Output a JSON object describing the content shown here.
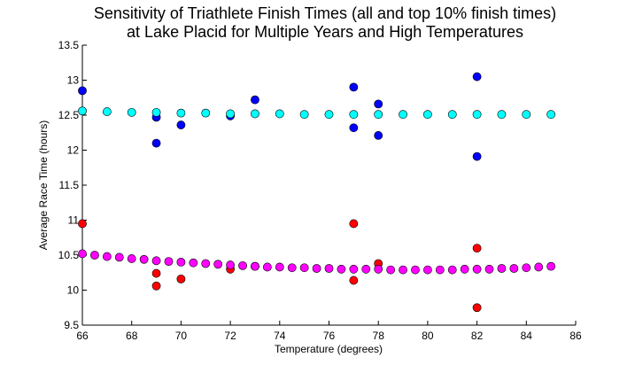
{
  "chart_data": {
    "type": "scatter",
    "title_lines": [
      "Sensitivity of Triathlete Finish Times (all and top 10% finish times)",
      "at Lake Placid for Multiple Years and High Temperatures"
    ],
    "xlabel": "Temperature (degrees)",
    "ylabel": "Average Race Time (hours)",
    "xlim": [
      66,
      86
    ],
    "ylim": [
      9.5,
      13.5
    ],
    "x_ticks": [
      "66",
      "68",
      "70",
      "72",
      "74",
      "76",
      "78",
      "80",
      "82",
      "84",
      "86"
    ],
    "y_ticks": [
      "9.5",
      "10",
      "10.5",
      "11",
      "11.5",
      "12",
      "12.5",
      "13",
      "13.5"
    ],
    "grid": false,
    "legend": "none",
    "series": [
      {
        "color": "#0000ff",
        "x": [
          66,
          69,
          69,
          70,
          72,
          73,
          77,
          77,
          78,
          78,
          82,
          82
        ],
        "y": [
          12.85,
          12.47,
          12.1,
          12.36,
          12.49,
          12.72,
          12.9,
          12.32,
          12.66,
          12.21,
          13.05,
          11.91
        ]
      },
      {
        "color": "#00ffff",
        "x": [
          66,
          67,
          68,
          69,
          70,
          71,
          72,
          73,
          74,
          75,
          76,
          77,
          78,
          79,
          80,
          81,
          82,
          83,
          84,
          85
        ],
        "y": [
          12.56,
          12.55,
          12.54,
          12.54,
          12.53,
          12.53,
          12.52,
          12.52,
          12.52,
          12.51,
          12.51,
          12.51,
          12.51,
          12.51,
          12.51,
          12.51,
          12.51,
          12.51,
          12.51,
          12.51
        ]
      },
      {
        "color": "#ff0000",
        "x": [
          66,
          69,
          69,
          70,
          72,
          73,
          77,
          77,
          78,
          82,
          82
        ],
        "y": [
          10.95,
          10.24,
          10.06,
          10.16,
          10.3,
          10.34,
          10.95,
          10.14,
          10.38,
          10.6,
          9.75
        ]
      },
      {
        "color": "#ff00ff",
        "x": [
          66,
          66.5,
          67,
          67.5,
          68,
          68.5,
          69,
          69.5,
          70,
          70.5,
          71,
          71.5,
          72,
          72.5,
          73,
          73.5,
          74,
          74.5,
          75,
          75.5,
          76,
          76.5,
          77,
          77.5,
          78,
          78.5,
          79,
          79.5,
          80,
          80.5,
          81,
          81.5,
          82,
          82.5,
          83,
          83.5,
          84,
          84.5,
          85
        ],
        "y": [
          10.52,
          10.5,
          10.48,
          10.47,
          10.45,
          10.44,
          10.42,
          10.41,
          10.4,
          10.39,
          10.38,
          10.37,
          10.36,
          10.35,
          10.34,
          10.33,
          10.33,
          10.32,
          10.32,
          10.31,
          10.31,
          10.3,
          10.3,
          10.3,
          10.3,
          10.29,
          10.29,
          10.29,
          10.29,
          10.29,
          10.29,
          10.3,
          10.3,
          10.3,
          10.31,
          10.31,
          10.32,
          10.33,
          10.34
        ]
      }
    ]
  }
}
